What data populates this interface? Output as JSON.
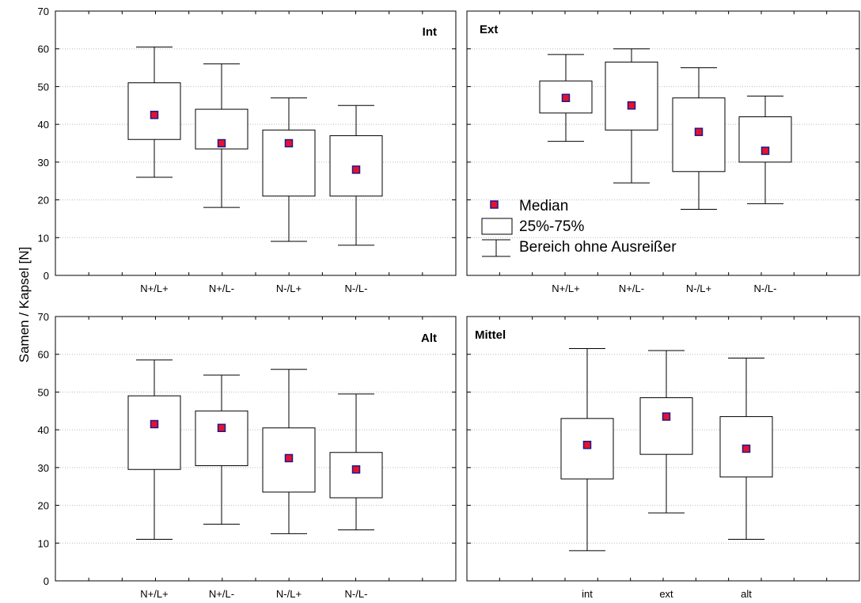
{
  "chart_data": {
    "type": "box",
    "ylabel": "Samen / Kapsel [N]",
    "ylim": [
      0,
      70
    ],
    "yticks": [
      "0",
      "10",
      "20",
      "30",
      "40",
      "50",
      "60",
      "70"
    ],
    "grid": true,
    "legend": {
      "placement": "inside-ext-panel-bottom-left",
      "entries": [
        "Median",
        "25%-75%",
        "Bereich ohne Ausreißer"
      ]
    },
    "colors": {
      "median_fill": "#e8112d",
      "median_border": "#1a1a8c",
      "box": "#000000",
      "grid": "#bbbbbb"
    },
    "panels": [
      {
        "title": "Int",
        "categories": [
          "N+/L+",
          "N+/L-",
          "N-/L+",
          "N-/L-"
        ],
        "boxes": [
          {
            "min": 26,
            "q1": 36,
            "median": 42.5,
            "q3": 51,
            "max": 60.5
          },
          {
            "min": 18,
            "q1": 33.5,
            "median": 35,
            "q3": 44,
            "max": 56
          },
          {
            "min": 9,
            "q1": 21,
            "median": 35,
            "q3": 38.5,
            "max": 47
          },
          {
            "min": 8,
            "q1": 21,
            "median": 28,
            "q3": 37,
            "max": 45
          }
        ]
      },
      {
        "title": "Ext",
        "categories": [
          "N+/L+",
          "N+/L-",
          "N-/L+",
          "N-/L-"
        ],
        "boxes": [
          {
            "min": 35.5,
            "q1": 43,
            "median": 47,
            "q3": 51.5,
            "max": 58.5
          },
          {
            "min": 24.5,
            "q1": 38.5,
            "median": 45,
            "q3": 56.5,
            "max": 60
          },
          {
            "min": 17.5,
            "q1": 27.5,
            "median": 38,
            "q3": 47,
            "max": 55
          },
          {
            "min": 19,
            "q1": 30,
            "median": 33,
            "q3": 42,
            "max": 47.5
          }
        ]
      },
      {
        "title": "Alt",
        "categories": [
          "N+/L+",
          "N+/L-",
          "N-/L+",
          "N-/L-"
        ],
        "boxes": [
          {
            "min": 11,
            "q1": 29.5,
            "median": 41.5,
            "q3": 49,
            "max": 58.5
          },
          {
            "min": 15,
            "q1": 30.5,
            "median": 40.5,
            "q3": 45,
            "max": 54.5
          },
          {
            "min": 12.5,
            "q1": 23.5,
            "median": 32.5,
            "q3": 40.5,
            "max": 56
          },
          {
            "min": 13.5,
            "q1": 22,
            "median": 29.5,
            "q3": 34,
            "max": 49.5
          }
        ]
      },
      {
        "title": "Mittel",
        "categories": [
          "int",
          "ext",
          "alt"
        ],
        "boxes": [
          {
            "min": 8,
            "q1": 27,
            "median": 36,
            "q3": 43,
            "max": 61.5
          },
          {
            "min": 18,
            "q1": 33.5,
            "median": 43.5,
            "q3": 48.5,
            "max": 61
          },
          {
            "min": 11,
            "q1": 27.5,
            "median": 35,
            "q3": 43.5,
            "max": 59
          }
        ]
      }
    ]
  }
}
